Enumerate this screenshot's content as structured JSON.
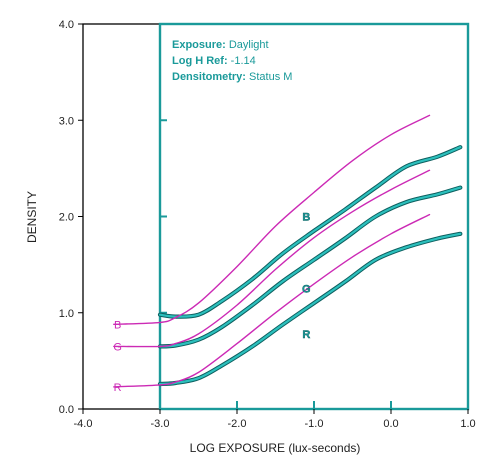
{
  "chart_data": {
    "type": "line",
    "xlabel": "LOG EXPOSURE (lux-seconds)",
    "ylabel": "DENSITY",
    "xlim": [
      -4.0,
      1.0
    ],
    "ylim": [
      0.0,
      4.0
    ],
    "x_ticks": [
      "-4.0",
      "-3.0",
      "-2.0",
      "-1.0",
      "0.0",
      "1.0"
    ],
    "y_ticks": [
      "0.0",
      "1.0",
      "2.0",
      "3.0",
      "4.0"
    ],
    "grid": false,
    "annotation": [
      {
        "key": "Exposure:",
        "value": " Daylight"
      },
      {
        "key": "Log H Ref:",
        "value": " -1.14"
      },
      {
        "key": "Densitometry:",
        "value": " Status M"
      }
    ],
    "colors": {
      "teal": "#1a9a9a",
      "magenta": "#cc2ab5",
      "frame": "#000000"
    },
    "series": [
      {
        "name": "B",
        "style": "teal",
        "x": [
          -3.0,
          -2.8,
          -2.5,
          -2.2,
          -1.8,
          -1.4,
          -1.0,
          -0.6,
          -0.2,
          0.2,
          0.6,
          0.9
        ],
        "y": [
          0.98,
          0.96,
          0.98,
          1.12,
          1.35,
          1.62,
          1.85,
          2.07,
          2.3,
          2.52,
          2.62,
          2.72
        ]
      },
      {
        "name": "G",
        "style": "teal",
        "x": [
          -3.0,
          -2.8,
          -2.5,
          -2.2,
          -1.8,
          -1.4,
          -1.0,
          -0.6,
          -0.2,
          0.2,
          0.6,
          0.9
        ],
        "y": [
          0.65,
          0.66,
          0.72,
          0.85,
          1.08,
          1.33,
          1.55,
          1.77,
          2.0,
          2.15,
          2.23,
          2.3
        ]
      },
      {
        "name": "R",
        "style": "teal",
        "x": [
          -3.0,
          -2.8,
          -2.5,
          -2.2,
          -1.8,
          -1.4,
          -1.0,
          -0.6,
          -0.2,
          0.2,
          0.6,
          0.9
        ],
        "y": [
          0.26,
          0.27,
          0.32,
          0.45,
          0.65,
          0.88,
          1.1,
          1.32,
          1.55,
          1.68,
          1.77,
          1.82
        ]
      },
      {
        "name": "B",
        "style": "magenta",
        "x": [
          -3.6,
          -3.0,
          -2.8,
          -2.5,
          -2.0,
          -1.5,
          -1.0,
          -0.5,
          0.0,
          0.5
        ],
        "y": [
          0.88,
          0.9,
          0.95,
          1.1,
          1.48,
          1.9,
          2.25,
          2.58,
          2.85,
          3.05
        ]
      },
      {
        "name": "G",
        "style": "magenta",
        "x": [
          -3.6,
          -3.0,
          -2.8,
          -2.5,
          -2.0,
          -1.5,
          -1.0,
          -0.5,
          0.0,
          0.5
        ],
        "y": [
          0.65,
          0.65,
          0.68,
          0.78,
          1.08,
          1.45,
          1.78,
          2.05,
          2.28,
          2.48
        ]
      },
      {
        "name": "R",
        "style": "magenta",
        "x": [
          -3.6,
          -3.0,
          -2.8,
          -2.5,
          -2.0,
          -1.5,
          -1.0,
          -0.5,
          0.0,
          0.5
        ],
        "y": [
          0.23,
          0.25,
          0.28,
          0.38,
          0.68,
          1.0,
          1.3,
          1.58,
          1.82,
          2.02
        ]
      }
    ],
    "series_labels": [
      {
        "text": "B",
        "color": "magenta",
        "x": -3.55,
        "y": 0.88
      },
      {
        "text": "G",
        "color": "magenta",
        "x": -3.55,
        "y": 0.65
      },
      {
        "text": "R",
        "color": "magenta",
        "x": -3.55,
        "y": 0.23
      },
      {
        "text": "B",
        "color": "teal",
        "x": -1.1,
        "y": 2.0
      },
      {
        "text": "G",
        "color": "teal",
        "x": -1.1,
        "y": 1.25
      },
      {
        "text": "R",
        "color": "teal",
        "x": -1.1,
        "y": 0.78
      }
    ]
  }
}
